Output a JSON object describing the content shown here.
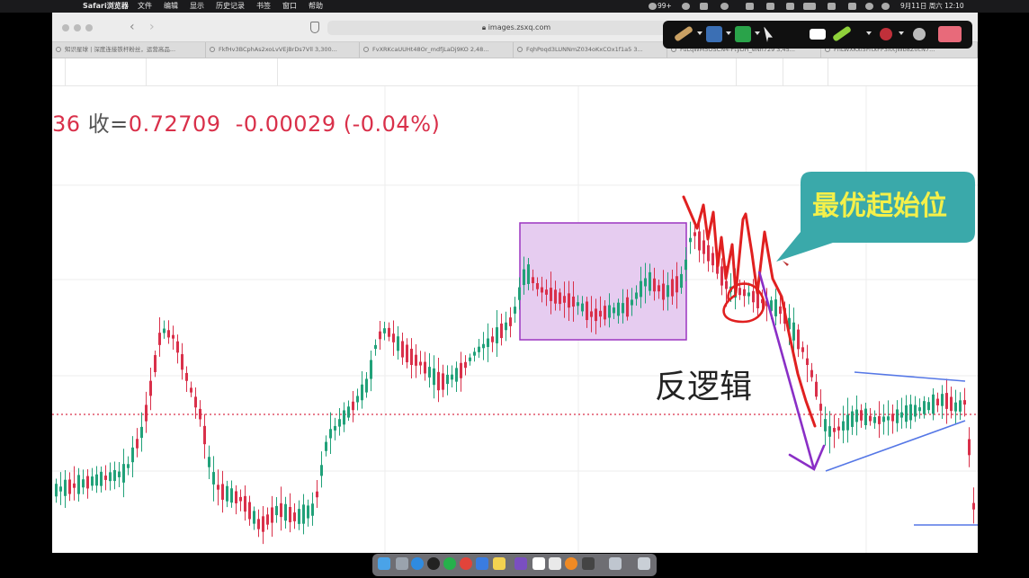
{
  "menubar": {
    "items": [
      "Safari浏览器",
      "文件",
      "编辑",
      "显示",
      "历史记录",
      "书签",
      "窗口",
      "帮助"
    ],
    "badge_count": "99+",
    "date_time": "9月11日 周六  12:10"
  },
  "browser": {
    "address": "images.zsxq.com",
    "tabs": [
      "知识星球 | 深度连接铁杆粉丝，运营高品...",
      "FkfHv3BCphAs2xoLvVEjBrDs7Vll 3,300...",
      "FvXRKcaUUHt48Or_mdfjLaDj9KO 2,48...",
      "FqhPoqd3LUNNmZ034oKxCOx1f1a5 3...",
      "FuLqWM5OSCN4-FtyDH_eNh729 3,45...",
      "FhLWXKxl5FrtxFP3i0tjWb8Z0cN7..."
    ]
  },
  "chart": {
    "quote_prefix": "36",
    "close_label": "收=",
    "close_value": "0.72709",
    "change": "-0.00029",
    "change_pct": "(-0.04%)",
    "callout_text": "最优起始位",
    "annotation_text": "反逻辑",
    "colors": {
      "up": "#21a179",
      "down": "#d9304a",
      "box_fill": "#e3c6ee",
      "box_border": "#9b35c0",
      "callout": "#3aa9aa",
      "callout_text": "#f4f04a",
      "pen_red": "#e02020",
      "pen_purple": "#8a2fc6",
      "trend_blue": "#5577e6"
    }
  },
  "dock": {
    "icons": [
      "finder-icon",
      "launchpad-icon",
      "safari-icon",
      "qq-icon",
      "wechat-icon",
      "chrome-icon",
      "mail-icon",
      "notes-icon",
      "app-icon",
      "notion-icon",
      "app2-icon",
      "app3-icon",
      "app4-icon",
      "app5-icon",
      "trash-icon"
    ]
  }
}
